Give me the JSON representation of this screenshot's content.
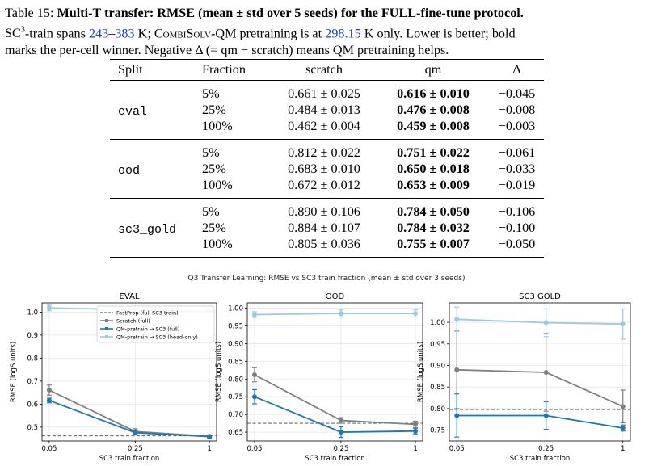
{
  "caption": {
    "label": "Table 15:",
    "title": "Multi-T transfer: RMSE (mean ± std over 5 seeds) for the FULL-fine-tune protocol.",
    "line2_a": "-train spans ",
    "sc3_base": "SC",
    "sc3_sup": "3",
    "range_low": "243",
    "range_dash": "–",
    "range_high": "383",
    "line2_b": " K; ",
    "combisolv": "CombiSolv",
    "line2_c": "-QM pretraining is at ",
    "temp": "298.15",
    "line2_d": " K only. Lower is better; bold",
    "line3": "marks the per-cell winner. Negative Δ (= qm − scratch) means QM pretraining helps."
  },
  "table": {
    "headers": [
      "Split",
      "Fraction",
      "scratch",
      "qm",
      "Δ"
    ],
    "groups": [
      {
        "split": "eval",
        "rows": [
          {
            "fraction": "5%",
            "scratch": "0.661 ± 0.025",
            "qm": "0.616 ± 0.010",
            "delta": "−0.045"
          },
          {
            "fraction": "25%",
            "scratch": "0.484 ± 0.013",
            "qm": "0.476 ± 0.008",
            "delta": "−0.008"
          },
          {
            "fraction": "100%",
            "scratch": "0.462 ± 0.004",
            "qm": "0.459 ± 0.008",
            "delta": "−0.003"
          }
        ]
      },
      {
        "split": "ood",
        "rows": [
          {
            "fraction": "5%",
            "scratch": "0.812 ± 0.022",
            "qm": "0.751 ± 0.022",
            "delta": "−0.061"
          },
          {
            "fraction": "25%",
            "scratch": "0.683 ± 0.010",
            "qm": "0.650 ± 0.018",
            "delta": "−0.033"
          },
          {
            "fraction": "100%",
            "scratch": "0.672 ± 0.012",
            "qm": "0.653 ± 0.009",
            "delta": "−0.019"
          }
        ]
      },
      {
        "split": "sc3_gold",
        "rows": [
          {
            "fraction": "5%",
            "scratch": "0.890 ± 0.106",
            "qm": "0.784 ± 0.050",
            "delta": "−0.106"
          },
          {
            "fraction": "25%",
            "scratch": "0.884 ± 0.107",
            "qm": "0.784 ± 0.032",
            "delta": "−0.100"
          },
          {
            "fraction": "100%",
            "scratch": "0.805 ± 0.036",
            "qm": "0.755 ± 0.007",
            "delta": "−0.050"
          }
        ]
      }
    ]
  },
  "figure_title": "Q3 Transfer Learning: RMSE vs SC3 train fraction (mean ± std over 3 seeds)",
  "chart_data": [
    {
      "type": "line",
      "title": "EVAL",
      "xlabel": "SC3 train fraction",
      "ylabel": "RMSE (logS units)",
      "x": [
        0.05,
        0.25,
        1
      ],
      "xticks": [
        "0.05",
        "0.25",
        "1"
      ],
      "ylim": [
        0.44,
        1.04
      ],
      "yticks": [
        0.5,
        0.6,
        0.7,
        0.8,
        0.9,
        1.0
      ],
      "ytick_labels": [
        "0.5",
        "0.6",
        "0.7",
        "0.8",
        "0.9",
        "1.0"
      ],
      "grid": true,
      "legend": "top-right",
      "baseline": {
        "name": "FastProp (full SC3 train)",
        "value": 0.462
      },
      "series": [
        {
          "name": "Scratch (full)",
          "color": "#808080",
          "values": [
            0.661,
            0.481,
            0.46
          ],
          "err": [
            0.022,
            0.012,
            0.004
          ]
        },
        {
          "name": "QM-pretrain → SC3 (full)",
          "color": "#1f77b4",
          "values": [
            0.616,
            0.476,
            0.459
          ],
          "err": [
            0.01,
            0.008,
            0.006
          ]
        },
        {
          "name": "QM-pretrain → SC3 (head-only)",
          "color": "#9ecae1",
          "values": [
            1.018,
            1.01,
            1.002
          ],
          "err": [
            0.012,
            0.006,
            0.005
          ]
        }
      ]
    },
    {
      "type": "line",
      "title": "OOD",
      "xlabel": "SC3 train fraction",
      "ylabel": "RMSE (logS units)",
      "x": [
        0.05,
        0.25,
        1
      ],
      "xticks": [
        "0.05",
        "0.25",
        "1"
      ],
      "ylim": [
        0.625,
        1.015
      ],
      "yticks": [
        0.65,
        0.7,
        0.75,
        0.8,
        0.85,
        0.9,
        0.95,
        1.0
      ],
      "ytick_labels": [
        "0.65",
        "0.70",
        "0.75",
        "0.80",
        "0.85",
        "0.90",
        "0.95",
        "1.00"
      ],
      "grid": true,
      "baseline": {
        "name": "FastProp (full SC3 train)",
        "value": 0.675
      },
      "series": [
        {
          "name": "Scratch (full)",
          "color": "#808080",
          "values": [
            0.812,
            0.683,
            0.672
          ],
          "err": [
            0.02,
            0.008,
            0.009
          ]
        },
        {
          "name": "QM-pretrain → SC3 (full)",
          "color": "#1f77b4",
          "values": [
            0.75,
            0.65,
            0.653
          ],
          "err": [
            0.02,
            0.015,
            0.008
          ]
        },
        {
          "name": "QM-pretrain → SC3 (head-only)",
          "color": "#9ecae1",
          "values": [
            0.982,
            0.985,
            0.985
          ],
          "err": [
            0.008,
            0.01,
            0.01
          ]
        }
      ]
    },
    {
      "type": "line",
      "title": "SC3 GOLD",
      "xlabel": "SC3 train fraction",
      "ylabel": "RMSE (logS units)",
      "x": [
        0.05,
        0.25,
        1
      ],
      "xticks": [
        "0.05",
        "0.25",
        "1"
      ],
      "ylim": [
        0.725,
        1.045
      ],
      "yticks": [
        0.75,
        0.8,
        0.85,
        0.9,
        0.95,
        1.0
      ],
      "ytick_labels": [
        "0.75",
        "0.80",
        "0.85",
        "0.90",
        "0.95",
        "1.00"
      ],
      "grid": true,
      "baseline": {
        "name": "FastProp (full SC3 train)",
        "value": 0.798
      },
      "series": [
        {
          "name": "Scratch (full)",
          "color": "#808080",
          "values": [
            0.89,
            0.884,
            0.805
          ],
          "err": [
            0.09,
            0.09,
            0.038
          ]
        },
        {
          "name": "QM-pretrain → SC3 (full)",
          "color": "#1f77b4",
          "values": [
            0.784,
            0.784,
            0.755
          ],
          "err": [
            0.05,
            0.032,
            0.007
          ]
        },
        {
          "name": "QM-pretrain → SC3 (head-only)",
          "color": "#9ecae1",
          "values": [
            1.007,
            0.999,
            0.996
          ],
          "err": [
            0.028,
            0.032,
            0.035
          ]
        }
      ]
    }
  ]
}
